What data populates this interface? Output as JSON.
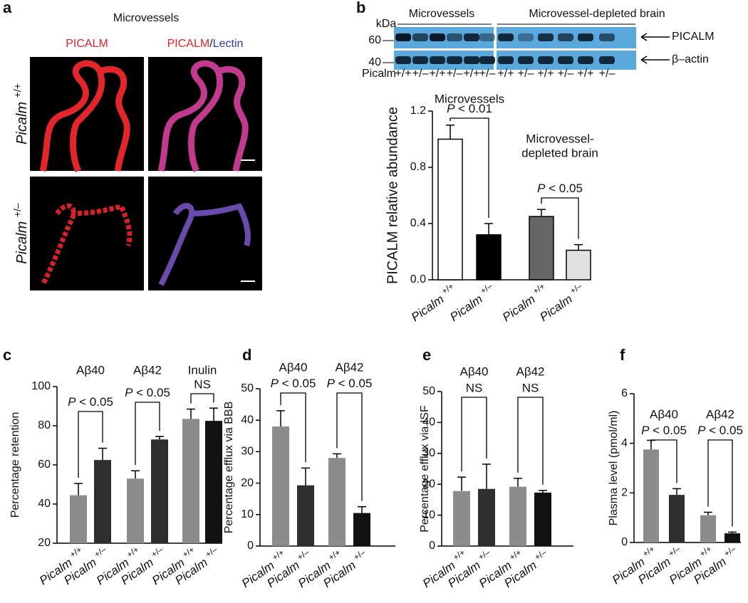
{
  "panel_a": {
    "panel": "a",
    "title": "Microvessels",
    "channel_left": "PICALM",
    "channel_right": "PICALM/Lectin",
    "rows": [
      "Picalm +/+",
      "Picalm +/–"
    ]
  },
  "blot": {
    "kda_label": "kDa",
    "marker_60": "60",
    "marker_40": "40",
    "group_left": "Microvessels",
    "group_right": "Microvessel-depleted brain",
    "band_top": "PICALM",
    "band_bottom": "β–actin",
    "row_label": "Picalm",
    "lanes": [
      "+/+",
      "+/–",
      "+/+",
      "+/–",
      "+/+",
      "+/–",
      "+/+",
      "+/–",
      "+/+",
      "+/–",
      "+/+",
      "+/–"
    ]
  },
  "chart_data": [
    {
      "type": "bar",
      "panel": "b",
      "ylabel": "PICALM relative abundance",
      "categories": [
        "Picalm +/+",
        "Picalm +/–",
        "Picalm +/+",
        "Picalm +/–"
      ],
      "values": [
        1.0,
        0.32,
        0.45,
        0.21
      ],
      "errors": [
        0.1,
        0.08,
        0.05,
        0.04
      ],
      "colors": [
        "#ffffff",
        "#000000",
        "#666666",
        "#e0e0e0"
      ],
      "ylim": [
        0,
        1.2
      ],
      "yticks": [
        {
          "value": 0,
          "label": "0.0"
        },
        0.4,
        0.8,
        1.2
      ],
      "group_labels": [
        [
          "Microvessels"
        ],
        [
          "Microvessel-",
          "depleted brain"
        ]
      ],
      "comparisons": [
        "P < 0.01",
        "P < 0.05"
      ]
    },
    {
      "type": "bar",
      "panel": "c",
      "ylabel": "Percentage retention",
      "categories": [
        "Picalm +/+",
        "Picalm +/–",
        "Picalm +/+",
        "Picalm +/–",
        "Picalm +/+",
        "Picalm +/–"
      ],
      "values": [
        44.5,
        62.5,
        53,
        73,
        83.5,
        82.5
      ],
      "errors": [
        6,
        6,
        4,
        1.5,
        5,
        6.5
      ],
      "colors": [
        "#8c8c8c",
        "#2e2e2e",
        "#8c8c8c",
        "#2e2e2e",
        "#8c8c8c",
        "#111111"
      ],
      "ylim": [
        20,
        100
      ],
      "yticks": [
        20,
        40,
        60,
        80,
        100
      ],
      "group_labels": [
        [
          "Aβ40"
        ],
        [
          "Aβ42"
        ],
        [
          "Inulin"
        ]
      ],
      "comparisons": [
        "P < 0.05",
        "P < 0.05",
        "NS"
      ]
    },
    {
      "type": "bar",
      "panel": "d",
      "ylabel": "Percentage efflux via BBB",
      "categories": [
        "Picalm +/+",
        "Picalm +/–",
        "Picalm +/+",
        "Picalm +/–"
      ],
      "values": [
        38,
        19.3,
        28,
        10.5
      ],
      "errors": [
        5,
        5.5,
        1.3,
        2
      ],
      "colors": [
        "#8c8c8c",
        "#2e2e2e",
        "#8c8c8c",
        "#111111"
      ],
      "ylim": [
        0,
        50
      ],
      "yticks": [
        0,
        10,
        20,
        30,
        40,
        50
      ],
      "group_labels": [
        [
          "Aβ40"
        ],
        [
          "Aβ42"
        ]
      ],
      "comparisons": [
        "P < 0.05",
        "P < 0.05"
      ]
    },
    {
      "type": "bar",
      "panel": "e",
      "ylabel": "Percentage efflux via ISF",
      "categories": [
        "Picalm +/+",
        "Picalm +/–",
        "Picalm +/+",
        "Picalm +/–"
      ],
      "values": [
        17.8,
        18.5,
        19.2,
        17.3
      ],
      "errors": [
        4.5,
        8,
        2.7,
        0.7
      ],
      "colors": [
        "#8c8c8c",
        "#2e2e2e",
        "#8c8c8c",
        "#111111"
      ],
      "ylim": [
        0,
        50
      ],
      "yticks": [
        0,
        10,
        20,
        30,
        40,
        50
      ],
      "group_labels": [
        [
          "Aβ40"
        ],
        [
          "Aβ42"
        ]
      ],
      "comparisons": [
        "NS",
        "NS"
      ]
    },
    {
      "type": "bar",
      "panel": "f",
      "ylabel": "Plasma level (pmol/ml)",
      "categories": [
        "Picalm +/+",
        "Picalm +/–",
        "Picalm +/+",
        "Picalm +/–"
      ],
      "values": [
        3.75,
        1.92,
        1.1,
        0.37
      ],
      "errors": [
        0.37,
        0.25,
        0.12,
        0.05
      ],
      "colors": [
        "#8c8c8c",
        "#2e2e2e",
        "#8c8c8c",
        "#111111"
      ],
      "ylim": [
        0,
        6
      ],
      "yticks": [
        0,
        2,
        4,
        6
      ],
      "group_labels": [
        [
          "Aβ40"
        ],
        [
          "Aβ42"
        ]
      ],
      "comparisons": [
        "P < 0.05",
        "P < 0.05"
      ]
    }
  ]
}
